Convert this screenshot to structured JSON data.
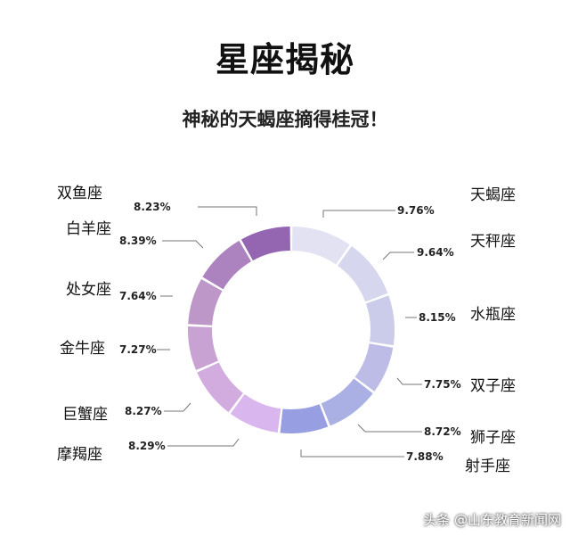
{
  "chart_data": {
    "type": "pie",
    "style": "donut",
    "title": "星座揭秘",
    "subtitle": "神秘的天蝎座摘得桂冠！",
    "slices": [
      {
        "label": "天蝎座",
        "value": 9.76,
        "display": "9.76%",
        "color": "#e2e2f2"
      },
      {
        "label": "天秤座",
        "value": 9.64,
        "display": "9.64%",
        "color": "#d6d6ee"
      },
      {
        "label": "水瓶座",
        "value": 8.15,
        "display": "8.15%",
        "color": "#cbcbea"
      },
      {
        "label": "双子座",
        "value": 7.75,
        "display": "7.75%",
        "color": "#bcbce6"
      },
      {
        "label": "狮子座",
        "value": 8.72,
        "display": "8.72%",
        "color": "#aab0e4"
      },
      {
        "label": "射手座",
        "value": 7.88,
        "display": "7.88%",
        "color": "#979ee2"
      },
      {
        "label": "摩羯座",
        "value": 8.29,
        "display": "8.29%",
        "color": "#dab6ee"
      },
      {
        "label": "巨蟹座",
        "value": 8.27,
        "display": "8.27%",
        "color": "#d2acdf"
      },
      {
        "label": "金牛座",
        "value": 7.27,
        "display": "7.27%",
        "color": "#c7a2d2"
      },
      {
        "label": "处女座",
        "value": 7.64,
        "display": "7.64%",
        "color": "#bc97c8"
      },
      {
        "label": "白羊座",
        "value": 8.39,
        "display": "8.39%",
        "color": "#ad83bf"
      },
      {
        "label": "双鱼座",
        "value": 8.23,
        "display": "8.23%",
        "color": "#9466b2"
      }
    ]
  },
  "watermark": "头条 @山东教育新闻网"
}
